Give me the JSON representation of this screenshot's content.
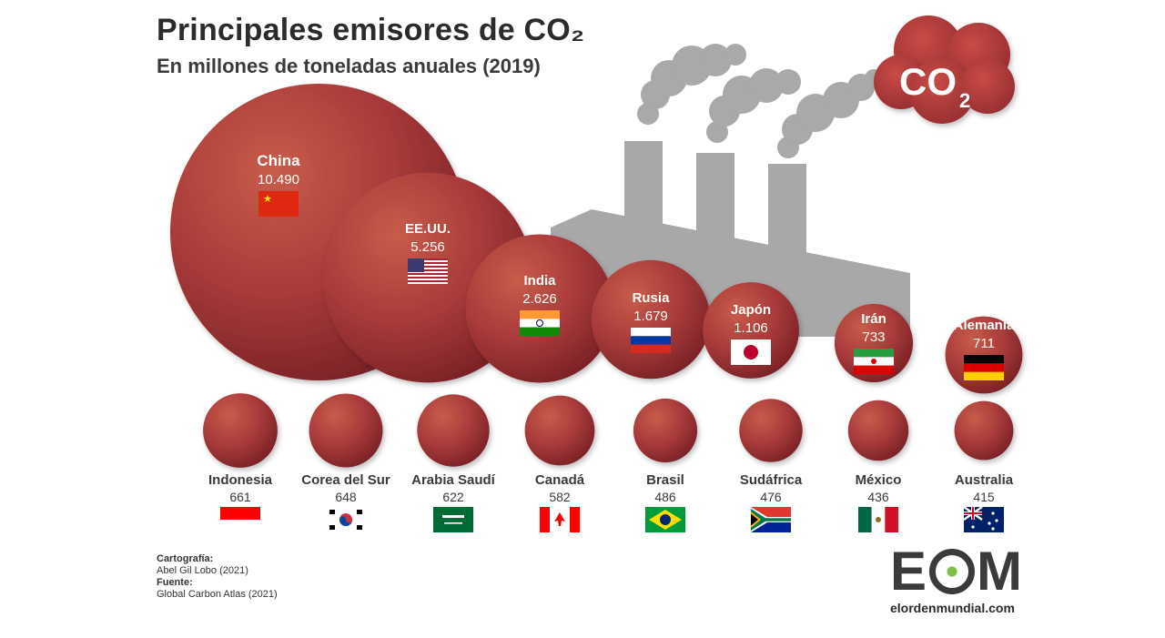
{
  "title": "Principales emisores de CO₂",
  "subtitle": "En millones de toneladas anuales (2019)",
  "credits": {
    "label1": "Cartografía:",
    "value1": "Abel Gil Lobo (2021)",
    "label2": "Fuente:",
    "value2": "Global Carbon Atlas (2021)"
  },
  "logo": {
    "mark_left": "E",
    "mark_right": "M",
    "url": "elordenmundial.com"
  },
  "cloud_label": "CO",
  "cloud_sub": "2",
  "colors": {
    "bubble": "#a83a3a",
    "bubble_light": "#c65a4a",
    "bubble_dark": "#7d2327",
    "factory": "#a7a7a7",
    "cloud": "#b3383b"
  },
  "chart_data": {
    "type": "bubble",
    "unit": "millones de toneladas de CO2",
    "series": [
      {
        "country": "China",
        "label": "10.490",
        "value": 10490,
        "flag": "china-flag"
      },
      {
        "country": "EE.UU.",
        "label": "5.256",
        "value": 5256,
        "flag": "usa-flag"
      },
      {
        "country": "India",
        "label": "2.626",
        "value": 2626,
        "flag": "india-flag"
      },
      {
        "country": "Rusia",
        "label": "1.679",
        "value": 1679,
        "flag": "russia-flag"
      },
      {
        "country": "Japón",
        "label": "1.106",
        "value": 1106,
        "flag": "japan-flag"
      },
      {
        "country": "Irán",
        "label": "733",
        "value": 733,
        "flag": "iran-flag"
      },
      {
        "country": "Alemania",
        "label": "711",
        "value": 711,
        "flag": "germany-flag"
      },
      {
        "country": "Indonesia",
        "label": "661",
        "value": 661,
        "flag": "indonesia-flag"
      },
      {
        "country": "Corea del Sur",
        "label": "648",
        "value": 648,
        "flag": "south-korea-flag"
      },
      {
        "country": "Arabia Saudí",
        "label": "622",
        "value": 622,
        "flag": "saudi-arabia-flag"
      },
      {
        "country": "Canadá",
        "label": "582",
        "value": 582,
        "flag": "canada-flag"
      },
      {
        "country": "Brasil",
        "label": "486",
        "value": 486,
        "flag": "brazil-flag"
      },
      {
        "country": "Sudáfrica",
        "label": "476",
        "value": 476,
        "flag": "south-africa-flag"
      },
      {
        "country": "México",
        "label": "436",
        "value": 436,
        "flag": "mexico-flag"
      },
      {
        "country": "Australia",
        "label": "415",
        "value": 415,
        "flag": "australia-flag"
      }
    ]
  }
}
